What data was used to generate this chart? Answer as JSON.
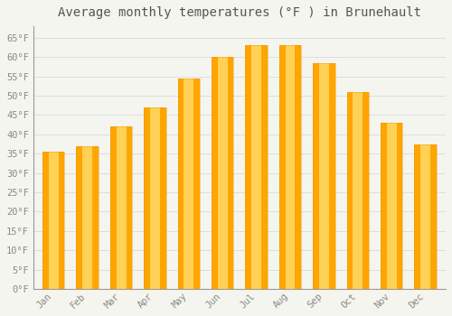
{
  "title": "Average monthly temperatures (°F ) in Brunehault",
  "months": [
    "Jan",
    "Feb",
    "Mar",
    "Apr",
    "May",
    "Jun",
    "Jul",
    "Aug",
    "Sep",
    "Oct",
    "Nov",
    "Dec"
  ],
  "values": [
    35.5,
    37.0,
    42.0,
    47.0,
    54.5,
    60.0,
    63.0,
    63.0,
    58.5,
    51.0,
    43.0,
    37.5
  ],
  "bar_color_center": "#FFD966",
  "bar_color_edge": "#FFA500",
  "background_color": "#F5F5F0",
  "plot_bg_color": "#F5F5F0",
  "grid_color": "#DDDDDD",
  "ylim": [
    0,
    68
  ],
  "yticks": [
    0,
    5,
    10,
    15,
    20,
    25,
    30,
    35,
    40,
    45,
    50,
    55,
    60,
    65
  ],
  "title_fontsize": 10,
  "tick_fontsize": 7.5,
  "title_color": "#555555",
  "tick_color": "#888888",
  "font_family": "monospace",
  "bar_width": 0.65
}
